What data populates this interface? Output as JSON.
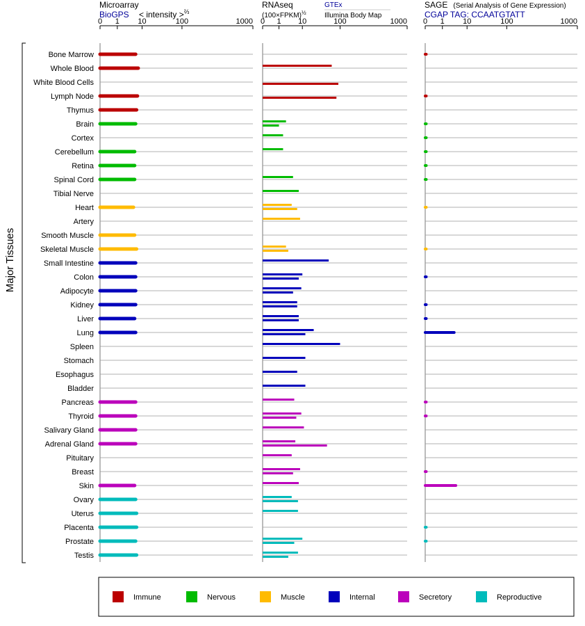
{
  "y_axis_label": "Major Tissues",
  "colors": {
    "Immune": "#bb0000",
    "Nervous": "#00bb00",
    "Muscle": "#ffbb00",
    "Internal": "#0000bb",
    "Secretory": "#bb00bb",
    "Reproductive": "#00bbbb"
  },
  "panels": {
    "microarray": {
      "title": "Microarray",
      "source": "BioGPS",
      "unit_prefix": "< intensity >",
      "unit_exp": "⅔"
    },
    "rnaseq": {
      "title": "RNAseq",
      "unit_prefix": "(100×FPKM)",
      "unit_exp": "½",
      "legend_gtex": "GTEx",
      "legend_ibm": "Illumina Body Map"
    },
    "sage": {
      "title": "SAGE",
      "subtitle": "(Serial Analysis of Gene Expression)",
      "tag": "CGAP TAG: CCAATGTATT"
    }
  },
  "chart_data": {
    "type": "bar",
    "orientation": "horizontal",
    "x_scale": "sqrt-like (tick labels 0, 1, 10, 100, 1000)",
    "x_ticks": [
      0,
      1,
      10,
      100,
      1000
    ],
    "xlim": [
      0,
      1000
    ],
    "grid": true,
    "legend_position": "bottom",
    "legend": [
      "Immune",
      "Nervous",
      "Muscle",
      "Internal",
      "Secretory",
      "Reproductive"
    ],
    "tissues": [
      {
        "name": "Bone Marrow",
        "group": "Immune",
        "microarray": 5.5,
        "gtex": null,
        "ibm": null,
        "sage": 0.02
      },
      {
        "name": "Whole Blood",
        "group": "Immune",
        "microarray": 7,
        "gtex": 60,
        "ibm": null,
        "sage": null
      },
      {
        "name": "White Blood Cells",
        "group": "Immune",
        "microarray": null,
        "gtex": null,
        "ibm": 90,
        "sage": null
      },
      {
        "name": "Lymph Node",
        "group": "Immune",
        "microarray": 6.5,
        "gtex": null,
        "ibm": 80,
        "sage": 0.02
      },
      {
        "name": "Thymus",
        "group": "Immune",
        "microarray": 6,
        "gtex": null,
        "ibm": null,
        "sage": null
      },
      {
        "name": "Brain",
        "group": "Nervous",
        "microarray": 5.5,
        "gtex": 2,
        "ibm": 1,
        "sage": 0.01
      },
      {
        "name": "Cortex",
        "group": "Nervous",
        "microarray": null,
        "gtex": 1.5,
        "ibm": null,
        "sage": 0.01
      },
      {
        "name": "Cerebellum",
        "group": "Nervous",
        "microarray": 5,
        "gtex": 1.5,
        "ibm": null,
        "sage": 0.01
      },
      {
        "name": "Retina",
        "group": "Nervous",
        "microarray": 5,
        "gtex": null,
        "ibm": null,
        "sage": 0.01
      },
      {
        "name": "Spinal Cord",
        "group": "Nervous",
        "microarray": 5,
        "gtex": 4,
        "ibm": null,
        "sage": 0.01
      },
      {
        "name": "Tibial Nerve",
        "group": "Nervous",
        "microarray": null,
        "gtex": 7,
        "ibm": null,
        "sage": null
      },
      {
        "name": "Heart",
        "group": "Muscle",
        "microarray": 4.5,
        "gtex": 3.5,
        "ibm": 6,
        "sage": 0.005
      },
      {
        "name": "Artery",
        "group": "Muscle",
        "microarray": null,
        "gtex": 8,
        "ibm": null,
        "sage": null
      },
      {
        "name": "Smooth Muscle",
        "group": "Muscle",
        "microarray": 5,
        "gtex": null,
        "ibm": null,
        "sage": null
      },
      {
        "name": "Skeletal Muscle",
        "group": "Muscle",
        "microarray": 6,
        "gtex": 2,
        "ibm": 2.5,
        "sage": 0.005
      },
      {
        "name": "Small Intestine",
        "group": "Internal",
        "microarray": 5.5,
        "gtex": 50,
        "ibm": null,
        "sage": null
      },
      {
        "name": "Colon",
        "group": "Internal",
        "microarray": 5.5,
        "gtex": 10,
        "ibm": 7,
        "sage": 0.02
      },
      {
        "name": "Adipocyte",
        "group": "Internal",
        "microarray": 5.5,
        "gtex": 9,
        "ibm": 4,
        "sage": null
      },
      {
        "name": "Kidney",
        "group": "Internal",
        "microarray": 5.5,
        "gtex": 6,
        "ibm": 6,
        "sage": 0.02
      },
      {
        "name": "Liver",
        "group": "Internal",
        "microarray": 5,
        "gtex": 7,
        "ibm": 7,
        "sage": 0.02
      },
      {
        "name": "Lung",
        "group": "Internal",
        "microarray": 5.5,
        "gtex": 20,
        "ibm": 12,
        "sage": 3
      },
      {
        "name": "Spleen",
        "group": "Internal",
        "microarray": null,
        "gtex": 100,
        "ibm": null,
        "sage": null
      },
      {
        "name": "Stomach",
        "group": "Internal",
        "microarray": null,
        "gtex": 12,
        "ibm": null,
        "sage": null
      },
      {
        "name": "Esophagus",
        "group": "Internal",
        "microarray": null,
        "gtex": 6,
        "ibm": null,
        "sage": null
      },
      {
        "name": "Bladder",
        "group": "Internal",
        "microarray": null,
        "gtex": 12,
        "ibm": null,
        "sage": null
      },
      {
        "name": "Pancreas",
        "group": "Secretory",
        "microarray": 5.5,
        "gtex": 4.5,
        "ibm": null,
        "sage": 0.02
      },
      {
        "name": "Thyroid",
        "group": "Secretory",
        "microarray": 5.5,
        "gtex": 9,
        "ibm": 5.5,
        "sage": 0.02
      },
      {
        "name": "Salivary Gland",
        "group": "Secretory",
        "microarray": 5.5,
        "gtex": 11,
        "ibm": null,
        "sage": null
      },
      {
        "name": "Adrenal Gland",
        "group": "Secretory",
        "microarray": 5.5,
        "gtex": 5,
        "ibm": 45,
        "sage": null
      },
      {
        "name": "Pituitary",
        "group": "Secretory",
        "microarray": null,
        "gtex": 3.5,
        "ibm": null,
        "sage": null
      },
      {
        "name": "Breast",
        "group": "Secretory",
        "microarray": null,
        "gtex": 8,
        "ibm": 4,
        "sage": 0.02
      },
      {
        "name": "Skin",
        "group": "Secretory",
        "microarray": 5,
        "gtex": 7,
        "ibm": null,
        "sage": 3.5
      },
      {
        "name": "Ovary",
        "group": "Reproductive",
        "microarray": 5.5,
        "gtex": 3.5,
        "ibm": 6.5,
        "sage": null
      },
      {
        "name": "Uterus",
        "group": "Reproductive",
        "microarray": 6,
        "gtex": 6.5,
        "ibm": null,
        "sage": null
      },
      {
        "name": "Placenta",
        "group": "Reproductive",
        "microarray": 6,
        "gtex": null,
        "ibm": null,
        "sage": 0.02
      },
      {
        "name": "Prostate",
        "group": "Reproductive",
        "microarray": 5.5,
        "gtex": 10,
        "ibm": 4.5,
        "sage": 0.02
      },
      {
        "name": "Testis",
        "group": "Reproductive",
        "microarray": 6,
        "gtex": 6.5,
        "ibm": 2.5,
        "sage": null
      }
    ]
  }
}
